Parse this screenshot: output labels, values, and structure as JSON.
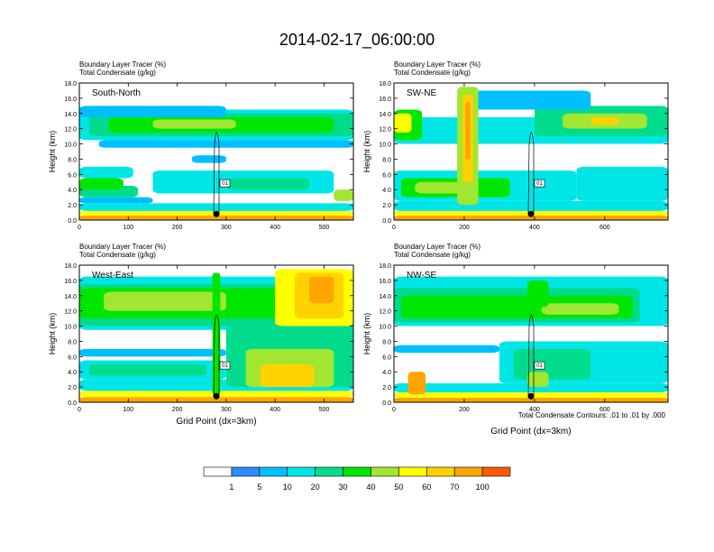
{
  "title": "2014-02-17_06:00:00",
  "colorbar": {
    "labels": [
      "1",
      "5",
      "10",
      "20",
      "30",
      "40",
      "50",
      "60",
      "70",
      "100"
    ],
    "colors": [
      "#ffffff",
      "#2a8cff",
      "#00bfff",
      "#00e6e6",
      "#00dc8c",
      "#00e600",
      "#a0e632",
      "#ffff00",
      "#ffd200",
      "#ffa500",
      "#ff5a00",
      "#ff0000"
    ]
  },
  "footnote": "Total Condensate Contours: .01 to .01 by .000",
  "contour_label": "01",
  "chart_data": [
    {
      "type": "heatmap",
      "panel": "South-North",
      "title_lines": [
        "Boundary Layer Tracer    (%)",
        "Total Condensate    (g/kg)"
      ],
      "ylabel": "Height (km)",
      "xlabel": "",
      "xlim": [
        0,
        560
      ],
      "ylim": [
        0,
        18
      ],
      "xticks": [
        "0",
        "100",
        "200",
        "300",
        "400",
        "500"
      ],
      "xtick_values": [
        0,
        100,
        200,
        300,
        400,
        500
      ],
      "yticks": [
        "0.0",
        "2.0",
        "4.0",
        "6.0",
        "8.0",
        "10.0",
        "12.0",
        "14.0",
        "16.0",
        "18.0"
      ],
      "cross_point_x": 280,
      "bands": [
        {
          "y0": 0,
          "y1": 0.6,
          "value": 70,
          "x0": 0,
          "x1": 560
        },
        {
          "y0": 0.6,
          "y1": 1.2,
          "value": 50,
          "x0": 0,
          "x1": 560
        },
        {
          "y0": 1.2,
          "y1": 2.2,
          "value": 10,
          "x0": 0,
          "x1": 560
        },
        {
          "y0": 2.2,
          "y1": 3.0,
          "value": 5,
          "x0": 0,
          "x1": 150
        },
        {
          "y0": 3.0,
          "y1": 4.5,
          "value": 20,
          "x0": 0,
          "x1": 120
        },
        {
          "y0": 4.0,
          "y1": 5.5,
          "value": 30,
          "x0": 0,
          "x1": 90
        },
        {
          "y0": 5.5,
          "y1": 7.0,
          "value": 10,
          "x0": 0,
          "x1": 110
        },
        {
          "y0": 3.5,
          "y1": 6.5,
          "value": 10,
          "x0": 150,
          "x1": 520
        },
        {
          "y0": 4.0,
          "y1": 5.5,
          "value": 20,
          "x0": 300,
          "x1": 470
        },
        {
          "y0": 2.5,
          "y1": 4.0,
          "value": 40,
          "x0": 520,
          "x1": 560
        },
        {
          "y0": 7.5,
          "y1": 8.5,
          "value": 5,
          "x0": 230,
          "x1": 300
        },
        {
          "y0": 9.5,
          "y1": 10.5,
          "value": 5,
          "x0": 40,
          "x1": 560
        },
        {
          "y0": 10.5,
          "y1": 14.5,
          "value": 10,
          "x0": 0,
          "x1": 560
        },
        {
          "y0": 11.0,
          "y1": 14.0,
          "value": 20,
          "x0": 20,
          "x1": 560
        },
        {
          "y0": 11.5,
          "y1": 13.5,
          "value": 30,
          "x0": 60,
          "x1": 520
        },
        {
          "y0": 12.0,
          "y1": 13.2,
          "value": 40,
          "x0": 150,
          "x1": 320
        },
        {
          "y0": 13.5,
          "y1": 15.0,
          "value": 5,
          "x0": 0,
          "x1": 300
        }
      ]
    },
    {
      "type": "heatmap",
      "panel": "SW-NE",
      "title_lines": [
        "Boundary Layer Tracer    (%)",
        "Total Condensate    (g/kg)"
      ],
      "ylabel": "Height (km)",
      "xlabel": "",
      "xlim": [
        0,
        780
      ],
      "ylim": [
        0,
        18
      ],
      "xticks": [
        "0",
        "200",
        "400",
        "600"
      ],
      "xtick_values": [
        0,
        200,
        400,
        600
      ],
      "yticks": [
        "0.0",
        "2.0",
        "4.0",
        "6.0",
        "8.0",
        "10.0",
        "12.0",
        "14.0",
        "16.0",
        "18.0"
      ],
      "cross_point_x": 390,
      "bands": [
        {
          "y0": 0,
          "y1": 0.6,
          "value": 70,
          "x0": 0,
          "x1": 780
        },
        {
          "y0": 0.6,
          "y1": 1.2,
          "value": 50,
          "x0": 0,
          "x1": 780
        },
        {
          "y0": 1.2,
          "y1": 2.5,
          "value": 10,
          "x0": 0,
          "x1": 780
        },
        {
          "y0": 2.5,
          "y1": 6.5,
          "value": 10,
          "x0": 0,
          "x1": 520
        },
        {
          "y0": 3.0,
          "y1": 5.5,
          "value": 30,
          "x0": 20,
          "x1": 330
        },
        {
          "y0": 3.5,
          "y1": 5.0,
          "value": 40,
          "x0": 60,
          "x1": 200
        },
        {
          "y0": 2.5,
          "y1": 7.0,
          "value": 10,
          "x0": 520,
          "x1": 780
        },
        {
          "y0": 10.0,
          "y1": 13.5,
          "value": 10,
          "x0": 0,
          "x1": 780
        },
        {
          "y0": 10.5,
          "y1": 14.5,
          "value": 30,
          "x0": 0,
          "x1": 80
        },
        {
          "y0": 11.5,
          "y1": 14.0,
          "value": 50,
          "x0": 0,
          "x1": 50
        },
        {
          "y0": 11.0,
          "y1": 15.0,
          "value": 20,
          "x0": 400,
          "x1": 780
        },
        {
          "y0": 12.0,
          "y1": 14.0,
          "value": 40,
          "x0": 480,
          "x1": 720
        },
        {
          "y0": 12.5,
          "y1": 13.5,
          "value": 60,
          "x0": 560,
          "x1": 640
        },
        {
          "y0": 14.5,
          "y1": 17.0,
          "value": 5,
          "x0": 200,
          "x1": 560
        },
        {
          "y0": 2.0,
          "y1": 17.5,
          "value": 40,
          "x0": 180,
          "x1": 240
        },
        {
          "y0": 5.0,
          "y1": 16.5,
          "value": 60,
          "x0": 195,
          "x1": 225
        },
        {
          "y0": 8.0,
          "y1": 15.5,
          "value": 70,
          "x0": 203,
          "x1": 217
        }
      ]
    },
    {
      "type": "heatmap",
      "panel": "West-East",
      "title_lines": [
        "Boundary Layer Tracer    (%)",
        "Total Condensate    (g/kg)"
      ],
      "ylabel": "Height (km)",
      "xlabel": "Grid Point (dx=3km)",
      "xlim": [
        0,
        560
      ],
      "ylim": [
        0,
        18
      ],
      "xticks": [
        "0",
        "100",
        "200",
        "300",
        "400",
        "500"
      ],
      "xtick_values": [
        0,
        100,
        200,
        300,
        400,
        500
      ],
      "yticks": [
        "0.0",
        "2.0",
        "4.0",
        "6.0",
        "8.0",
        "10.0",
        "12.0",
        "14.0",
        "16.0",
        "18.0"
      ],
      "cross_point_x": 280,
      "bands": [
        {
          "y0": 0,
          "y1": 0.7,
          "value": 70,
          "x0": 0,
          "x1": 560
        },
        {
          "y0": 0.7,
          "y1": 1.5,
          "value": 50,
          "x0": 0,
          "x1": 560
        },
        {
          "y0": 1.5,
          "y1": 3.0,
          "value": 10,
          "x0": 0,
          "x1": 560
        },
        {
          "y0": 3.0,
          "y1": 5.5,
          "value": 10,
          "x0": 0,
          "x1": 300
        },
        {
          "y0": 3.5,
          "y1": 5.0,
          "value": 20,
          "x0": 20,
          "x1": 260
        },
        {
          "y0": 6.0,
          "y1": 7.0,
          "value": 5,
          "x0": 0,
          "x1": 300
        },
        {
          "y0": 9.5,
          "y1": 16.5,
          "value": 10,
          "x0": 0,
          "x1": 560
        },
        {
          "y0": 10.0,
          "y1": 15.5,
          "value": 20,
          "x0": 0,
          "x1": 560
        },
        {
          "y0": 11.0,
          "y1": 15.0,
          "value": 30,
          "x0": 0,
          "x1": 420
        },
        {
          "y0": 12.0,
          "y1": 14.5,
          "value": 40,
          "x0": 50,
          "x1": 300
        },
        {
          "y0": 2.0,
          "y1": 10.0,
          "value": 20,
          "x0": 300,
          "x1": 560
        },
        {
          "y0": 2.0,
          "y1": 7.0,
          "value": 40,
          "x0": 340,
          "x1": 520
        },
        {
          "y0": 2.0,
          "y1": 5.0,
          "value": 60,
          "x0": 370,
          "x1": 480
        },
        {
          "y0": 10.0,
          "y1": 17.5,
          "value": 50,
          "x0": 400,
          "x1": 560
        },
        {
          "y0": 11.0,
          "y1": 17.0,
          "value": 60,
          "x0": 440,
          "x1": 540
        },
        {
          "y0": 13.0,
          "y1": 16.5,
          "value": 70,
          "x0": 470,
          "x1": 520
        },
        {
          "y0": 1.0,
          "y1": 17.0,
          "value": 30,
          "x0": 272,
          "x1": 288
        }
      ]
    },
    {
      "type": "heatmap",
      "panel": "NW-SE",
      "title_lines": [
        "Boundary Layer Tracer    (%)",
        "Total Condensate    (g/kg)"
      ],
      "ylabel": "Height (km)",
      "xlabel": "Grid Point (dx=3km)",
      "xlim": [
        0,
        780
      ],
      "ylim": [
        0,
        18
      ],
      "xticks": [
        "0",
        "200",
        "400",
        "600"
      ],
      "xtick_values": [
        0,
        200,
        400,
        600
      ],
      "yticks": [
        "0.0",
        "2.0",
        "4.0",
        "6.0",
        "8.0",
        "10.0",
        "12.0",
        "14.0",
        "16.0",
        "18.0"
      ],
      "cross_point_x": 390,
      "bands": [
        {
          "y0": 0,
          "y1": 0.6,
          "value": 70,
          "x0": 0,
          "x1": 780
        },
        {
          "y0": 0.6,
          "y1": 1.3,
          "value": 50,
          "x0": 0,
          "x1": 780
        },
        {
          "y0": 1.3,
          "y1": 2.5,
          "value": 10,
          "x0": 0,
          "x1": 780
        },
        {
          "y0": 1.0,
          "y1": 4.0,
          "value": 70,
          "x0": 40,
          "x1": 90
        },
        {
          "y0": 2.5,
          "y1": 8.0,
          "value": 10,
          "x0": 300,
          "x1": 780
        },
        {
          "y0": 3.0,
          "y1": 7.0,
          "value": 20,
          "x0": 340,
          "x1": 560
        },
        {
          "y0": 2.0,
          "y1": 4.0,
          "value": 40,
          "x0": 380,
          "x1": 440
        },
        {
          "y0": 6.5,
          "y1": 7.5,
          "value": 5,
          "x0": 0,
          "x1": 300
        },
        {
          "y0": 10.0,
          "y1": 16.5,
          "value": 10,
          "x0": 0,
          "x1": 780
        },
        {
          "y0": 10.5,
          "y1": 15.0,
          "value": 20,
          "x0": 0,
          "x1": 700
        },
        {
          "y0": 11.0,
          "y1": 14.0,
          "value": 30,
          "x0": 20,
          "x1": 680
        },
        {
          "y0": 11.5,
          "y1": 13.0,
          "value": 40,
          "x0": 420,
          "x1": 640
        },
        {
          "y0": 12.5,
          "y1": 16.0,
          "value": 30,
          "x0": 380,
          "x1": 440
        }
      ]
    }
  ]
}
